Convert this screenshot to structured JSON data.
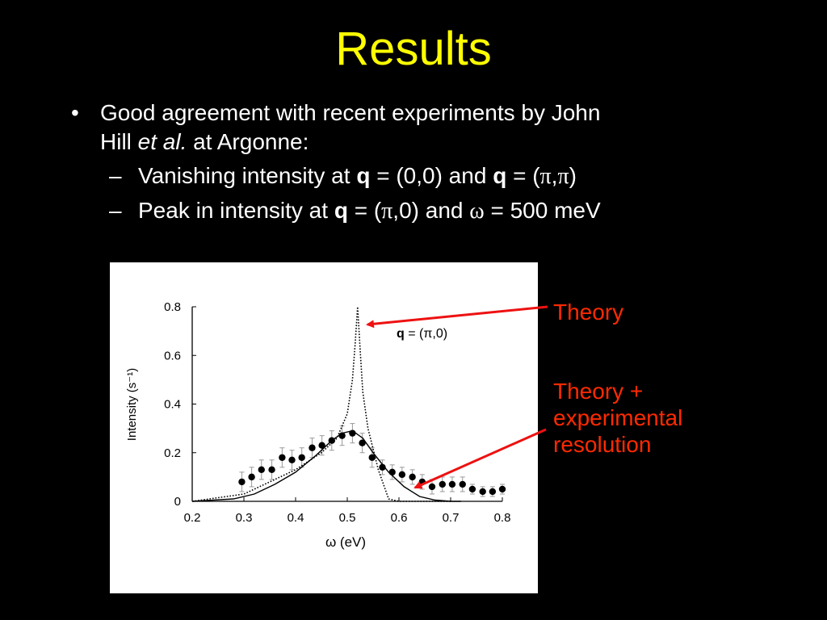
{
  "slide": {
    "title": "Results",
    "bullet1": {
      "text_a": "Good agreement with recent experiments by John",
      "text_b": "Hill ",
      "italic": "et al.",
      "text_c": " at Argonne:"
    },
    "sub1": {
      "a": "Vanishing intensity at ",
      "q": "q",
      "b": " = (0,0) and ",
      "q2": "q",
      "c": " = (",
      "pi1": "π",
      "comma": ",",
      "pi2": "π",
      "d": ")"
    },
    "sub2": {
      "a": "Peak in intensity at ",
      "q": "q",
      "b": " = (",
      "pi": "π",
      "c": ",0) and ",
      "omega": "ω",
      "d": " = 500 meV"
    }
  },
  "annotations": {
    "theory": "Theory",
    "theory_res": [
      "Theory +",
      "experimental",
      "resolution"
    ],
    "arrow_color": "#ee1111"
  },
  "chart_data": {
    "type": "scatter",
    "xlabel": "ω (eV)",
    "ylabel": "Intensity (s⁻¹)",
    "xlim": [
      0.2,
      0.8
    ],
    "ylim": [
      0,
      0.8
    ],
    "xticks": [
      "0.2",
      "0.3",
      "0.4",
      "0.5",
      "0.6",
      "0.7",
      "0.8"
    ],
    "yticks": [
      "0",
      "0.2",
      "0.4",
      "0.6",
      "0.8"
    ],
    "inset_label": {
      "q": "q",
      "rest": " = (π,0)"
    },
    "grid": false,
    "series": [
      {
        "style": "points-with-error-bars",
        "x": [
          0.296,
          0.315,
          0.334,
          0.354,
          0.374,
          0.393,
          0.412,
          0.432,
          0.451,
          0.47,
          0.49,
          0.51,
          0.529,
          0.548,
          0.568,
          0.587,
          0.606,
          0.626,
          0.645,
          0.664,
          0.684,
          0.703,
          0.723,
          0.742,
          0.762,
          0.781,
          0.8
        ],
        "y": [
          0.08,
          0.1,
          0.13,
          0.13,
          0.18,
          0.17,
          0.18,
          0.22,
          0.23,
          0.25,
          0.27,
          0.28,
          0.24,
          0.18,
          0.14,
          0.12,
          0.11,
          0.1,
          0.08,
          0.06,
          0.07,
          0.07,
          0.07,
          0.05,
          0.04,
          0.04,
          0.05
        ],
        "err": [
          0.04,
          0.04,
          0.04,
          0.04,
          0.04,
          0.04,
          0.04,
          0.04,
          0.04,
          0.04,
          0.04,
          0.04,
          0.04,
          0.04,
          0.03,
          0.03,
          0.03,
          0.03,
          0.03,
          0.03,
          0.03,
          0.03,
          0.03,
          0.02,
          0.02,
          0.02,
          0.02
        ]
      },
      {
        "style": "dotted-line",
        "x": [
          0.2,
          0.3,
          0.35,
          0.4,
          0.45,
          0.48,
          0.5,
          0.51,
          0.515,
          0.52,
          0.525,
          0.53,
          0.54,
          0.56,
          0.58,
          0.6,
          0.7
        ],
        "y": [
          0.0,
          0.03,
          0.08,
          0.13,
          0.2,
          0.26,
          0.36,
          0.5,
          0.64,
          0.8,
          0.62,
          0.45,
          0.3,
          0.13,
          0.01,
          0.0,
          0.0
        ]
      },
      {
        "style": "solid-line",
        "x": [
          0.2,
          0.28,
          0.32,
          0.36,
          0.4,
          0.44,
          0.47,
          0.49,
          0.51,
          0.53,
          0.55,
          0.58,
          0.61,
          0.64,
          0.67,
          0.7,
          0.72
        ],
        "y": [
          0.0,
          0.01,
          0.03,
          0.07,
          0.12,
          0.19,
          0.25,
          0.28,
          0.29,
          0.26,
          0.2,
          0.12,
          0.06,
          0.02,
          0.005,
          0.0,
          0.0
        ]
      }
    ]
  }
}
